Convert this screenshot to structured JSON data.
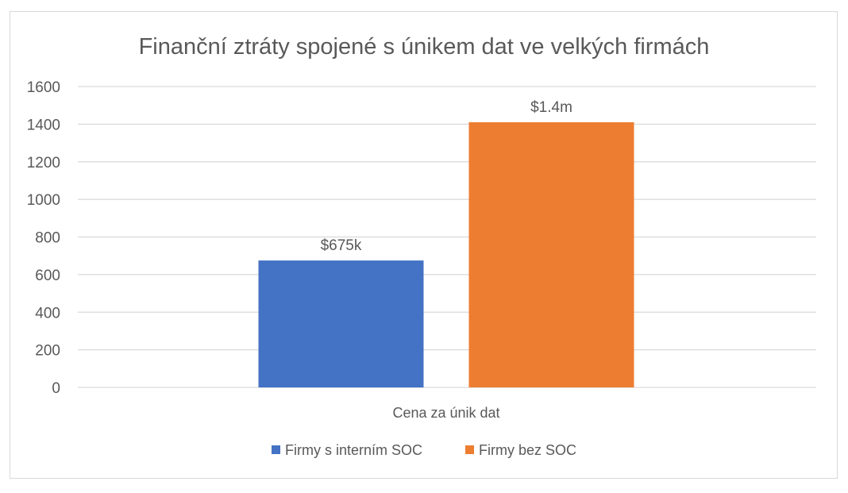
{
  "chart_data": {
    "type": "bar",
    "title": "Finanční ztráty spojené s únikem dat ve velkých firmách",
    "xlabel": "Cena za únik dat",
    "ylabel": "",
    "categories": [
      "Cena za únik dat"
    ],
    "series": [
      {
        "name": "Firmy s interním SOC",
        "values": [
          675
        ],
        "data_label": "$675k",
        "color": "#4472C4"
      },
      {
        "name": "Firmy bez SOC",
        "values": [
          1410
        ],
        "data_label": "$1.4m",
        "color": "#ED7D31"
      }
    ],
    "ylim": [
      0,
      1600
    ],
    "yticks": [
      0,
      200,
      400,
      600,
      800,
      1000,
      1200,
      1400,
      1600
    ],
    "grid": true,
    "legend": "bottom"
  }
}
